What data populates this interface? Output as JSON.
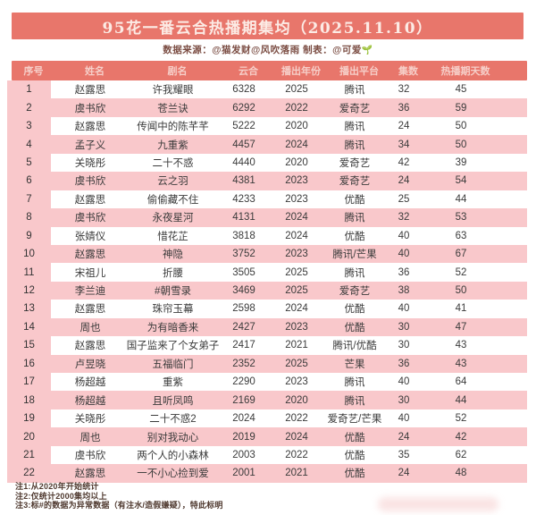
{
  "page": {
    "title": "95花一番云合热播期集均（2025.11.10）",
    "subtitle": "数据来源：@猫发财@风吹落雨 制表：@可爱",
    "subtitle_icon": "🌱"
  },
  "colors": {
    "accent_bar": "#E8766B",
    "stripe_pink": "#F9C8CB",
    "header_text": "#F6CFC9",
    "title_text": "#FCEBE5",
    "footnote_text": "#4F392F"
  },
  "chart_data": {
    "type": "table",
    "title": "95花一番云合热播期集均（2025.11.10）",
    "headers": [
      "序号",
      "姓名",
      "剧名",
      "云合",
      "播出年份",
      "播出平台",
      "集数",
      "热播期天数"
    ],
    "column_keys": [
      "index",
      "name",
      "drama",
      "yunhe",
      "year",
      "platform",
      "episodes",
      "hot-days"
    ],
    "rows": [
      [
        "1",
        "赵露思",
        "许我耀眼",
        "6328",
        "2025",
        "腾讯",
        "32",
        "45"
      ],
      [
        "2",
        "虞书欣",
        "苍兰诀",
        "6292",
        "2022",
        "爱奇艺",
        "36",
        "59"
      ],
      [
        "3",
        "赵露思",
        "传闻中的陈芊芊",
        "5222",
        "2020",
        "腾讯",
        "24",
        "50"
      ],
      [
        "4",
        "孟子义",
        "九重紫",
        "4457",
        "2024",
        "腾讯",
        "34",
        "50"
      ],
      [
        "5",
        "关晓彤",
        "二十不惑",
        "4440",
        "2020",
        "爱奇艺",
        "42",
        "39"
      ],
      [
        "6",
        "虞书欣",
        "云之羽",
        "4381",
        "2023",
        "爱奇艺",
        "24",
        "54"
      ],
      [
        "7",
        "赵露思",
        "偷偷藏不住",
        "4233",
        "2023",
        "优酷",
        "25",
        "44"
      ],
      [
        "8",
        "虞书欣",
        "永夜星河",
        "4131",
        "2024",
        "腾讯",
        "32",
        "53"
      ],
      [
        "9",
        "张婧仪",
        "惜花芷",
        "3818",
        "2024",
        "优酷",
        "40",
        "63"
      ],
      [
        "10",
        "赵露思",
        "神隐",
        "3752",
        "2023",
        "腾讯/芒果",
        "40",
        "67"
      ],
      [
        "11",
        "宋祖儿",
        "折腰",
        "3505",
        "2025",
        "腾讯",
        "36",
        "52"
      ],
      [
        "12",
        "李兰迪",
        "#朝雪录",
        "3469",
        "2025",
        "爱奇艺",
        "38",
        "50"
      ],
      [
        "13",
        "赵露思",
        "珠帘玉幕",
        "2598",
        "2024",
        "优酷",
        "40",
        "41"
      ],
      [
        "14",
        "周也",
        "为有暗香来",
        "2427",
        "2023",
        "优酷",
        "30",
        "47"
      ],
      [
        "15",
        "赵露思",
        "国子监来了个女弟子",
        "2417",
        "2021",
        "腾讯/优酷",
        "30",
        "43"
      ],
      [
        "16",
        "卢昱晓",
        "五福临门",
        "2352",
        "2025",
        "芒果",
        "36",
        "43"
      ],
      [
        "17",
        "杨超越",
        "重紫",
        "2290",
        "2023",
        "腾讯",
        "40",
        "64"
      ],
      [
        "18",
        "杨超越",
        "且听凤鸣",
        "2169",
        "2020",
        "腾讯",
        "30",
        "44"
      ],
      [
        "19",
        "关晓彤",
        "二十不惑2",
        "2024",
        "2022",
        "爱奇艺/芒果",
        "40",
        "52"
      ],
      [
        "20",
        "周也",
        "别对我动心",
        "2019",
        "2024",
        "优酷",
        "24",
        "42"
      ],
      [
        "21",
        "虞书欣",
        "两个人的小森林",
        "2003",
        "2022",
        "优酷",
        "35",
        "62"
      ],
      [
        "22",
        "赵露思",
        "一不小心捡到爱",
        "2001",
        "2021",
        "优酷",
        "24",
        "48"
      ]
    ]
  },
  "footnotes": [
    "注1:从2020年开始统计",
    "注2:仅统计2000集均以上",
    "注3:标#的数据为异常数据（有注水/造假嫌疑），特此标明"
  ]
}
